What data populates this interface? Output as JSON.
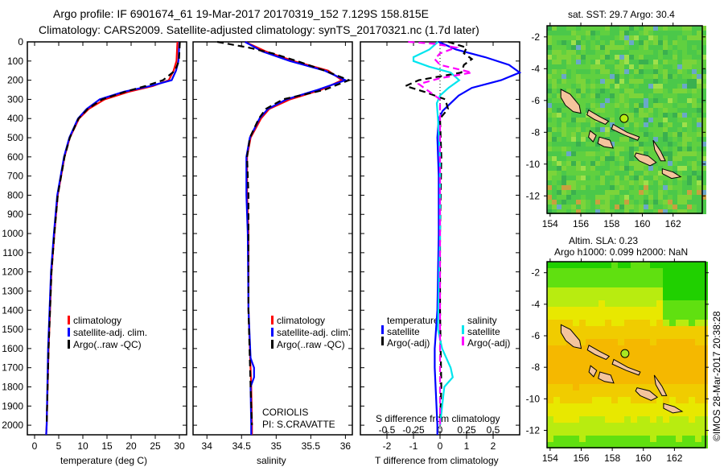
{
  "title": {
    "line1": "Argo profile: IF 6901674_61 19-Mar-2017 20170319_152 7.129S 158.815E",
    "line2": "Climatology: CARS2009. Satellite-adjusted climatology: synTS_20170321.nc (1.7d later)"
  },
  "colors": {
    "climatology": "#ff0000",
    "satellite": "#0000ff",
    "argo": "#000000",
    "sal_satellite": "#00e5ee",
    "sal_argo": "#ff00ff"
  },
  "depth_ticks": [
    0,
    100,
    200,
    300,
    400,
    500,
    600,
    700,
    800,
    900,
    1000,
    1100,
    1200,
    1300,
    1400,
    1500,
    1600,
    1700,
    1800,
    1900,
    2000
  ],
  "chart_data": [
    {
      "type": "line",
      "name": "temperature-profile",
      "xlabel": "temperature (deg C)",
      "xlim": [
        -1.5,
        31.5
      ],
      "ylim": [
        2050,
        0
      ],
      "xticks": [
        0,
        5,
        10,
        15,
        20,
        25,
        30
      ],
      "legend": [
        "climatology",
        "satellite-adj. clim.",
        "Argo(..raw -QC)"
      ],
      "series": [
        {
          "name": "climatology",
          "depth": [
            0,
            100,
            150,
            200,
            230,
            260,
            300,
            350,
            400,
            500,
            600,
            800,
            1000,
            1200,
            1600,
            2000,
            2050
          ],
          "values": [
            29.6,
            29.4,
            28.8,
            27.8,
            24.5,
            19.5,
            14.5,
            11.2,
            9.2,
            7.3,
            6.2,
            4.8,
            4.1,
            3.5,
            2.9,
            2.5,
            2.4
          ]
        },
        {
          "name": "satellite-adj. clim.",
          "depth": [
            0,
            100,
            150,
            200,
            230,
            260,
            300,
            350,
            400,
            500,
            600,
            800,
            1000,
            1200,
            1600,
            2000,
            2050
          ],
          "values": [
            30.0,
            29.8,
            29.3,
            28.4,
            24.0,
            18.5,
            13.5,
            10.8,
            9.0,
            7.2,
            6.1,
            4.7,
            4.0,
            3.4,
            2.8,
            2.5,
            2.4
          ]
        },
        {
          "name": "Argo(..raw -QC)",
          "depth": [
            0,
            100,
            150,
            200,
            230,
            260,
            300,
            350,
            400,
            500,
            600,
            800,
            1000,
            1200,
            1600,
            2000
          ],
          "values": [
            30.1,
            29.9,
            29.1,
            26.6,
            23.0,
            18.8,
            14.0,
            11.0,
            9.1,
            7.3,
            6.2,
            4.8,
            4.1,
            3.5,
            2.9,
            2.5
          ]
        }
      ]
    },
    {
      "type": "line",
      "name": "salinity-profile",
      "xlabel": "salinity",
      "xlim": [
        33.8,
        36.1
      ],
      "ylim": [
        2050,
        0
      ],
      "xticks": [
        34,
        34.5,
        35,
        35.5,
        36
      ],
      "legend": [
        "climatology",
        "satellite-adj. clim.",
        "Argo(..raw -QC)"
      ],
      "annotation": [
        "CORIOLIS",
        "PI: S.CRAVATTE"
      ],
      "series": [
        {
          "name": "climatology",
          "depth": [
            0,
            50,
            100,
            150,
            200,
            250,
            300,
            350,
            400,
            500,
            600,
            800,
            1000,
            1400,
            1800,
            2000,
            2050
          ],
          "values": [
            34.55,
            34.85,
            35.25,
            35.75,
            35.95,
            35.65,
            35.2,
            34.9,
            34.78,
            34.63,
            34.58,
            34.58,
            34.6,
            34.6,
            34.64,
            34.65,
            34.65
          ]
        },
        {
          "name": "satellite-adj. clim.",
          "depth": [
            0,
            50,
            100,
            150,
            200,
            250,
            300,
            350,
            400,
            500,
            600,
            800,
            1000,
            1400,
            1650,
            1700,
            1750,
            1800,
            2000,
            2050
          ],
          "values": [
            34.55,
            34.8,
            35.2,
            35.7,
            36.0,
            35.6,
            35.15,
            34.88,
            34.76,
            34.62,
            34.57,
            34.57,
            34.59,
            34.6,
            34.63,
            34.68,
            34.68,
            34.63,
            34.64,
            34.64
          ]
        },
        {
          "name": "Argo(..raw -QC)",
          "depth": [
            0,
            30,
            60,
            100,
            150,
            200,
            250,
            300,
            350,
            400,
            500,
            600,
            800,
            1000,
            1400,
            1800,
            2000
          ],
          "values": [
            34.15,
            34.6,
            34.95,
            35.3,
            35.7,
            36.05,
            35.7,
            35.1,
            34.85,
            34.75,
            34.62,
            34.58,
            34.6,
            34.6,
            34.6,
            34.63,
            34.65
          ]
        }
      ]
    },
    {
      "type": "line",
      "name": "difference-profile",
      "xlabel": "T difference from climatology",
      "x2label": "S difference from climatology",
      "xlim": [
        -3,
        3
      ],
      "ylim": [
        2050,
        0
      ],
      "xticks": [
        -2,
        -1,
        0,
        1,
        2
      ],
      "x2ticks": [
        -0.5,
        -0.25,
        0,
        0.25,
        0.5
      ],
      "legend_temperature_title": "temperature",
      "legend_salinity_title": "salinity",
      "legend": [
        "satellite",
        "Argo(-adj)",
        "satellite",
        "Argo(-adj)"
      ],
      "series": [
        {
          "name": "temperature satellite",
          "units": "T",
          "depth": [
            0,
            40,
            80,
            120,
            160,
            200,
            240,
            280,
            320,
            360,
            400,
            500,
            700,
            1000,
            1400,
            1600,
            1700,
            2000,
            2050
          ],
          "values": [
            -0.05,
            0.6,
            1.7,
            2.6,
            3.0,
            2.3,
            1.2,
            0.7,
            0.4,
            0.1,
            -0.05,
            -0.1,
            -0.05,
            -0.05,
            -0.1,
            -0.2,
            -0.2,
            -0.1,
            -0.1
          ]
        },
        {
          "name": "temperature Argo(-adj)",
          "units": "T",
          "depth": [
            0,
            30,
            60,
            90,
            120,
            160,
            200,
            230,
            260,
            300,
            350,
            400,
            600,
            1000,
            1400,
            1800,
            2000
          ],
          "values": [
            0.3,
            1.0,
            0.9,
            1.2,
            0.9,
            0.8,
            -0.8,
            -1.3,
            -0.6,
            0.2,
            0.3,
            0.0,
            0.05,
            0.0,
            0.0,
            0.05,
            0.0
          ]
        },
        {
          "name": "salinity satellite",
          "units": "S",
          "depth": [
            0,
            40,
            80,
            100,
            130,
            160,
            200,
            240,
            280,
            320,
            400,
            600,
            1000,
            1500,
            1600,
            1700,
            1750,
            1800,
            2000
          ],
          "values": [
            -0.02,
            -0.1,
            -0.25,
            -0.25,
            -0.1,
            0.1,
            0.18,
            0.08,
            0.0,
            -0.03,
            -0.02,
            0.0,
            0.0,
            -0.02,
            0.02,
            0.1,
            0.12,
            0.04,
            0.0
          ]
        },
        {
          "name": "salinity Argo(-adj)",
          "units": "S",
          "depth": [
            0,
            10,
            30,
            60,
            90,
            120,
            160,
            190,
            220,
            260,
            300,
            400,
            600,
            1000,
            1600,
            2000
          ],
          "values": [
            -0.3,
            -0.05,
            0.15,
            0.0,
            -0.05,
            0.0,
            0.3,
            0.0,
            -0.2,
            -0.1,
            0.0,
            0.0,
            0.0,
            0.0,
            0.0,
            0.0
          ]
        }
      ]
    },
    {
      "type": "heatmap",
      "name": "sst-map",
      "title": "sat. SST: 29.7  Argo: 30.4",
      "xlim": [
        153.8,
        163.9
      ],
      "ylim": [
        -13.1,
        -1.3
      ],
      "xticks": [
        154,
        156,
        158,
        160,
        162
      ],
      "yticks": [
        -2,
        -4,
        -6,
        -8,
        -10,
        -12
      ],
      "argo_position": {
        "lon": 158.815,
        "lat": -7.129
      }
    },
    {
      "type": "heatmap",
      "name": "sla-map",
      "title": "Altim. SLA: 0.23",
      "subtitle": "Argo h1000: 0.099 h2000: NaN",
      "xlim": [
        153.8,
        164.0
      ],
      "ylim": [
        -13.1,
        -1.3
      ],
      "xticks": [
        154,
        156,
        158,
        160,
        162
      ],
      "yticks": [
        -2,
        -4,
        -6,
        -8,
        -10,
        -12
      ],
      "argo_position": {
        "lon": 158.815,
        "lat": -7.129
      }
    }
  ],
  "footer_stamp": "©IMOS 28-Mar-2017 20:38:28"
}
